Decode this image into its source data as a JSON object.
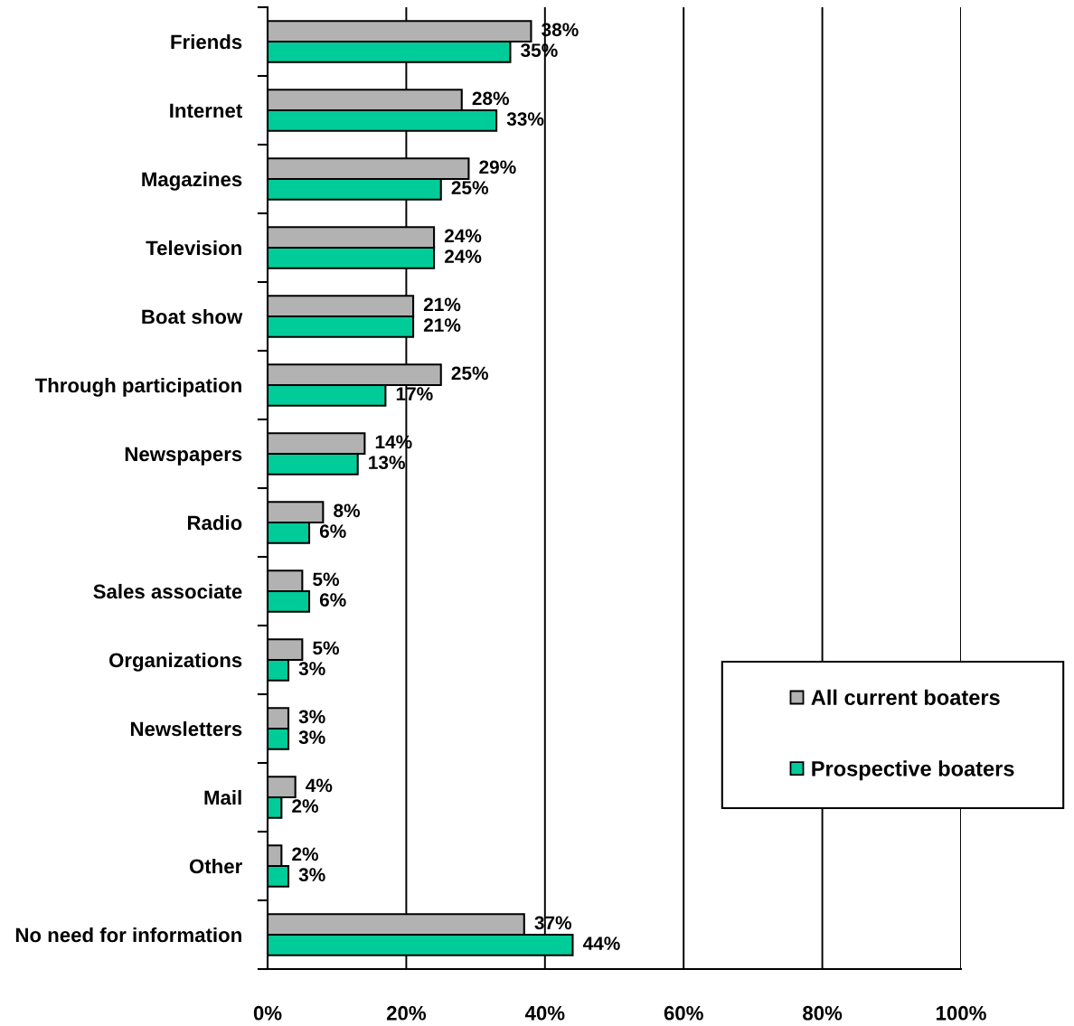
{
  "chart_data": {
    "type": "bar",
    "orientation": "horizontal",
    "categories": [
      "Friends",
      "Internet",
      "Magazines",
      "Television",
      "Boat show",
      "Through participation",
      "Newspapers",
      "Radio",
      "Sales associate",
      "Organizations",
      "Newsletters",
      "Mail",
      "Other",
      "No need for information"
    ],
    "series": [
      {
        "name": "All current boaters",
        "color": "#b2b2b2",
        "values": [
          38,
          28,
          29,
          24,
          21,
          25,
          14,
          8,
          5,
          5,
          3,
          4,
          2,
          37
        ],
        "value_labels": [
          "38%",
          "28%",
          "29%",
          "24%",
          "21%",
          "25%",
          "14%",
          "8%",
          "5%",
          "5%",
          "3%",
          "4%",
          "2%",
          "37%"
        ]
      },
      {
        "name": "Prospective boaters",
        "color": "#00cc99",
        "values": [
          35,
          33,
          25,
          24,
          21,
          17,
          13,
          6,
          6,
          3,
          3,
          2,
          3,
          44
        ],
        "value_labels": [
          "35%",
          "33%",
          "25%",
          "24%",
          "21%",
          "17%",
          "13%",
          "6%",
          "6%",
          "3%",
          "3%",
          "2%",
          "3%",
          "44%"
        ]
      }
    ],
    "xlim": [
      0,
      100
    ],
    "xticks": [
      {
        "value": 0,
        "label": "0%"
      },
      {
        "value": 20,
        "label": "20%"
      },
      {
        "value": 40,
        "label": "40%"
      },
      {
        "value": 60,
        "label": "60%"
      },
      {
        "value": 80,
        "label": "80%"
      },
      {
        "value": 100,
        "label": "100%"
      }
    ],
    "grid": "x",
    "legend": "bottom right"
  }
}
